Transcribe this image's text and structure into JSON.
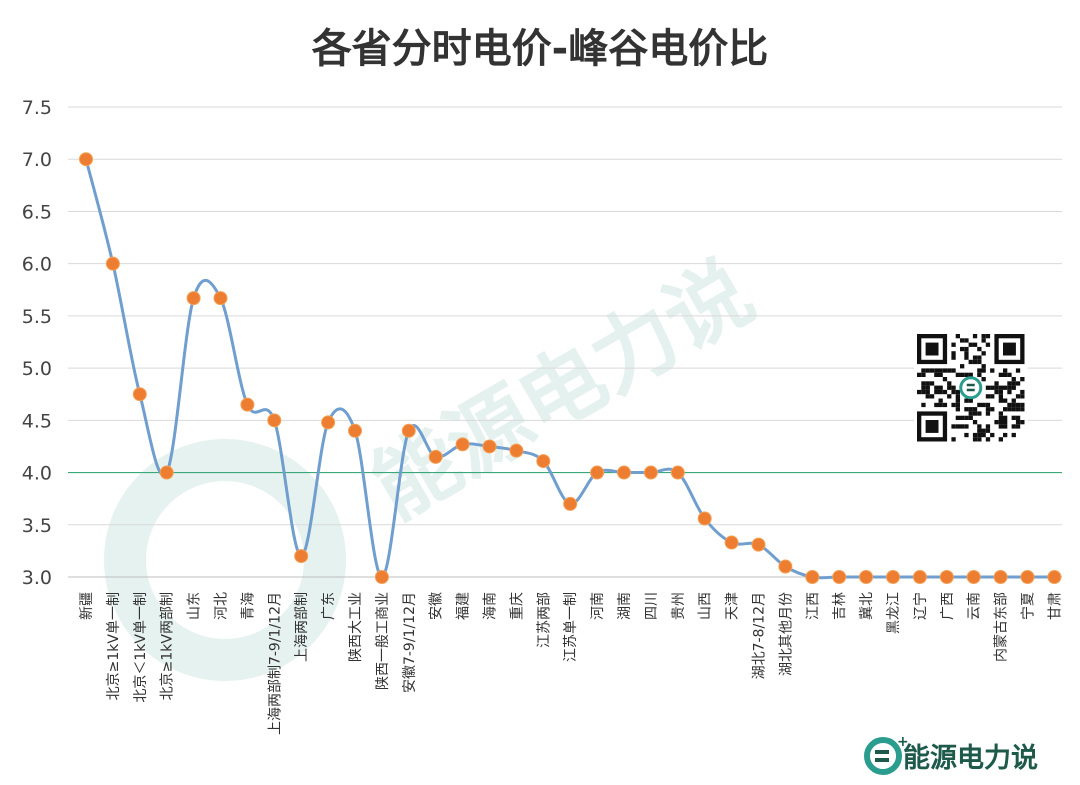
{
  "watermark": "能源电力说",
  "brand": {
    "name": "能源电力说"
  },
  "colors": {
    "line": "#6f9ecf",
    "marker": "#ed7d31",
    "reference_line": "#3aa87a",
    "grid": "#d9d9d9",
    "brand": "#1d5a4a"
  },
  "icons": [
    "qr-code-icon",
    "brand-logo-icon"
  ],
  "chart_data": {
    "type": "line",
    "title": "各省分时电价-峰谷电价比",
    "xlabel": "",
    "ylabel": "",
    "ylim": [
      3.0,
      7.5
    ],
    "yticks": [
      "3.0",
      "3.5",
      "4.0",
      "4.5",
      "5.0",
      "5.5",
      "6.0",
      "6.5",
      "7.0",
      "7.5"
    ],
    "grid": true,
    "smooth": true,
    "reference_line": 4.0,
    "categories": [
      "新疆",
      "北京≥1kV单一制",
      "北京＜1kV单一制",
      "北京≥1kV两部制",
      "山东",
      "河北",
      "青海",
      "上海两部制7-9/1/12月",
      "上海两部制",
      "广东",
      "陕西大工业",
      "陕西一般工商业",
      "安徽7-9/1/12月",
      "安徽",
      "福建",
      "海南",
      "重庆",
      "江苏两部",
      "江苏单一制",
      "河南",
      "湖南",
      "四川",
      "贵州",
      "山西",
      "天津",
      "湖北7-8/12月",
      "湖北其他月份",
      "江西",
      "吉林",
      "冀北",
      "黑龙江",
      "辽宁",
      "广西",
      "云南",
      "内蒙古东部",
      "宁夏",
      "甘肃"
    ],
    "series": [
      {
        "values": [
          7.0,
          6.0,
          4.75,
          4.0,
          5.67,
          5.67,
          4.65,
          4.5,
          3.2,
          4.48,
          4.4,
          3.0,
          4.4,
          4.15,
          4.27,
          4.25,
          4.21,
          4.11,
          3.7,
          4.0,
          4.0,
          4.0,
          4.0,
          3.56,
          3.33,
          3.31,
          3.1,
          3.0,
          3.0,
          3.0,
          3.0,
          3.0,
          3.0,
          3.0,
          3.0,
          3.0,
          3.0
        ]
      }
    ]
  }
}
